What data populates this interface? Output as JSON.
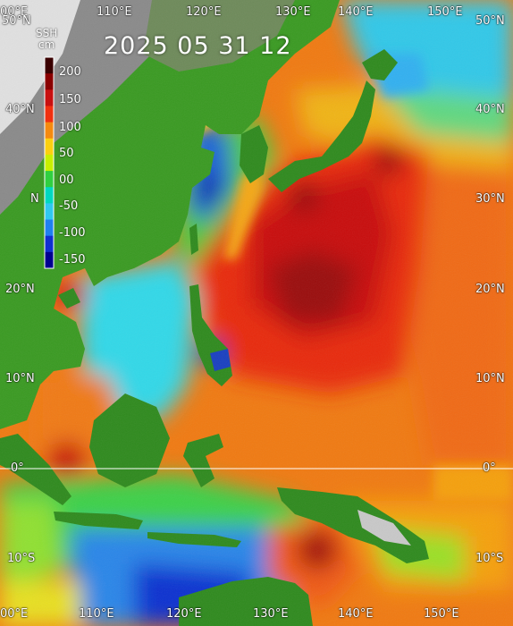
{
  "timestamp": "2025 05 31 12",
  "colorbar": {
    "title_line1": "SSH",
    "title_line2": "cm",
    "ticks": [
      "200",
      "150",
      "100",
      "50",
      "00",
      "-50",
      "-100",
      "-150"
    ],
    "colors": [
      "#3a0000",
      "#8a0000",
      "#c81010",
      "#f03010",
      "#f58a10",
      "#fcd010",
      "#c8f000",
      "#30d040",
      "#00d8c0",
      "#30c8f0",
      "#2080f0",
      "#1030d0",
      "#000090"
    ]
  },
  "longitude_labels": {
    "top": [
      "00°E",
      "110°E",
      "120°E",
      "130°E",
      "140°E",
      "150°E"
    ],
    "bottom": [
      "00°E",
      "110°E",
      "120°E",
      "130°E",
      "140°E",
      "150°E"
    ]
  },
  "latitude_labels": {
    "left": [
      "50°N",
      "40°N",
      "",
      "20°N",
      "10°N",
      "0°",
      "10°S"
    ],
    "right": [
      "50°N",
      "40°N",
      "30°N",
      "20°N",
      "10°N",
      "0°",
      "10°S"
    ]
  },
  "partial_label": "N"
}
